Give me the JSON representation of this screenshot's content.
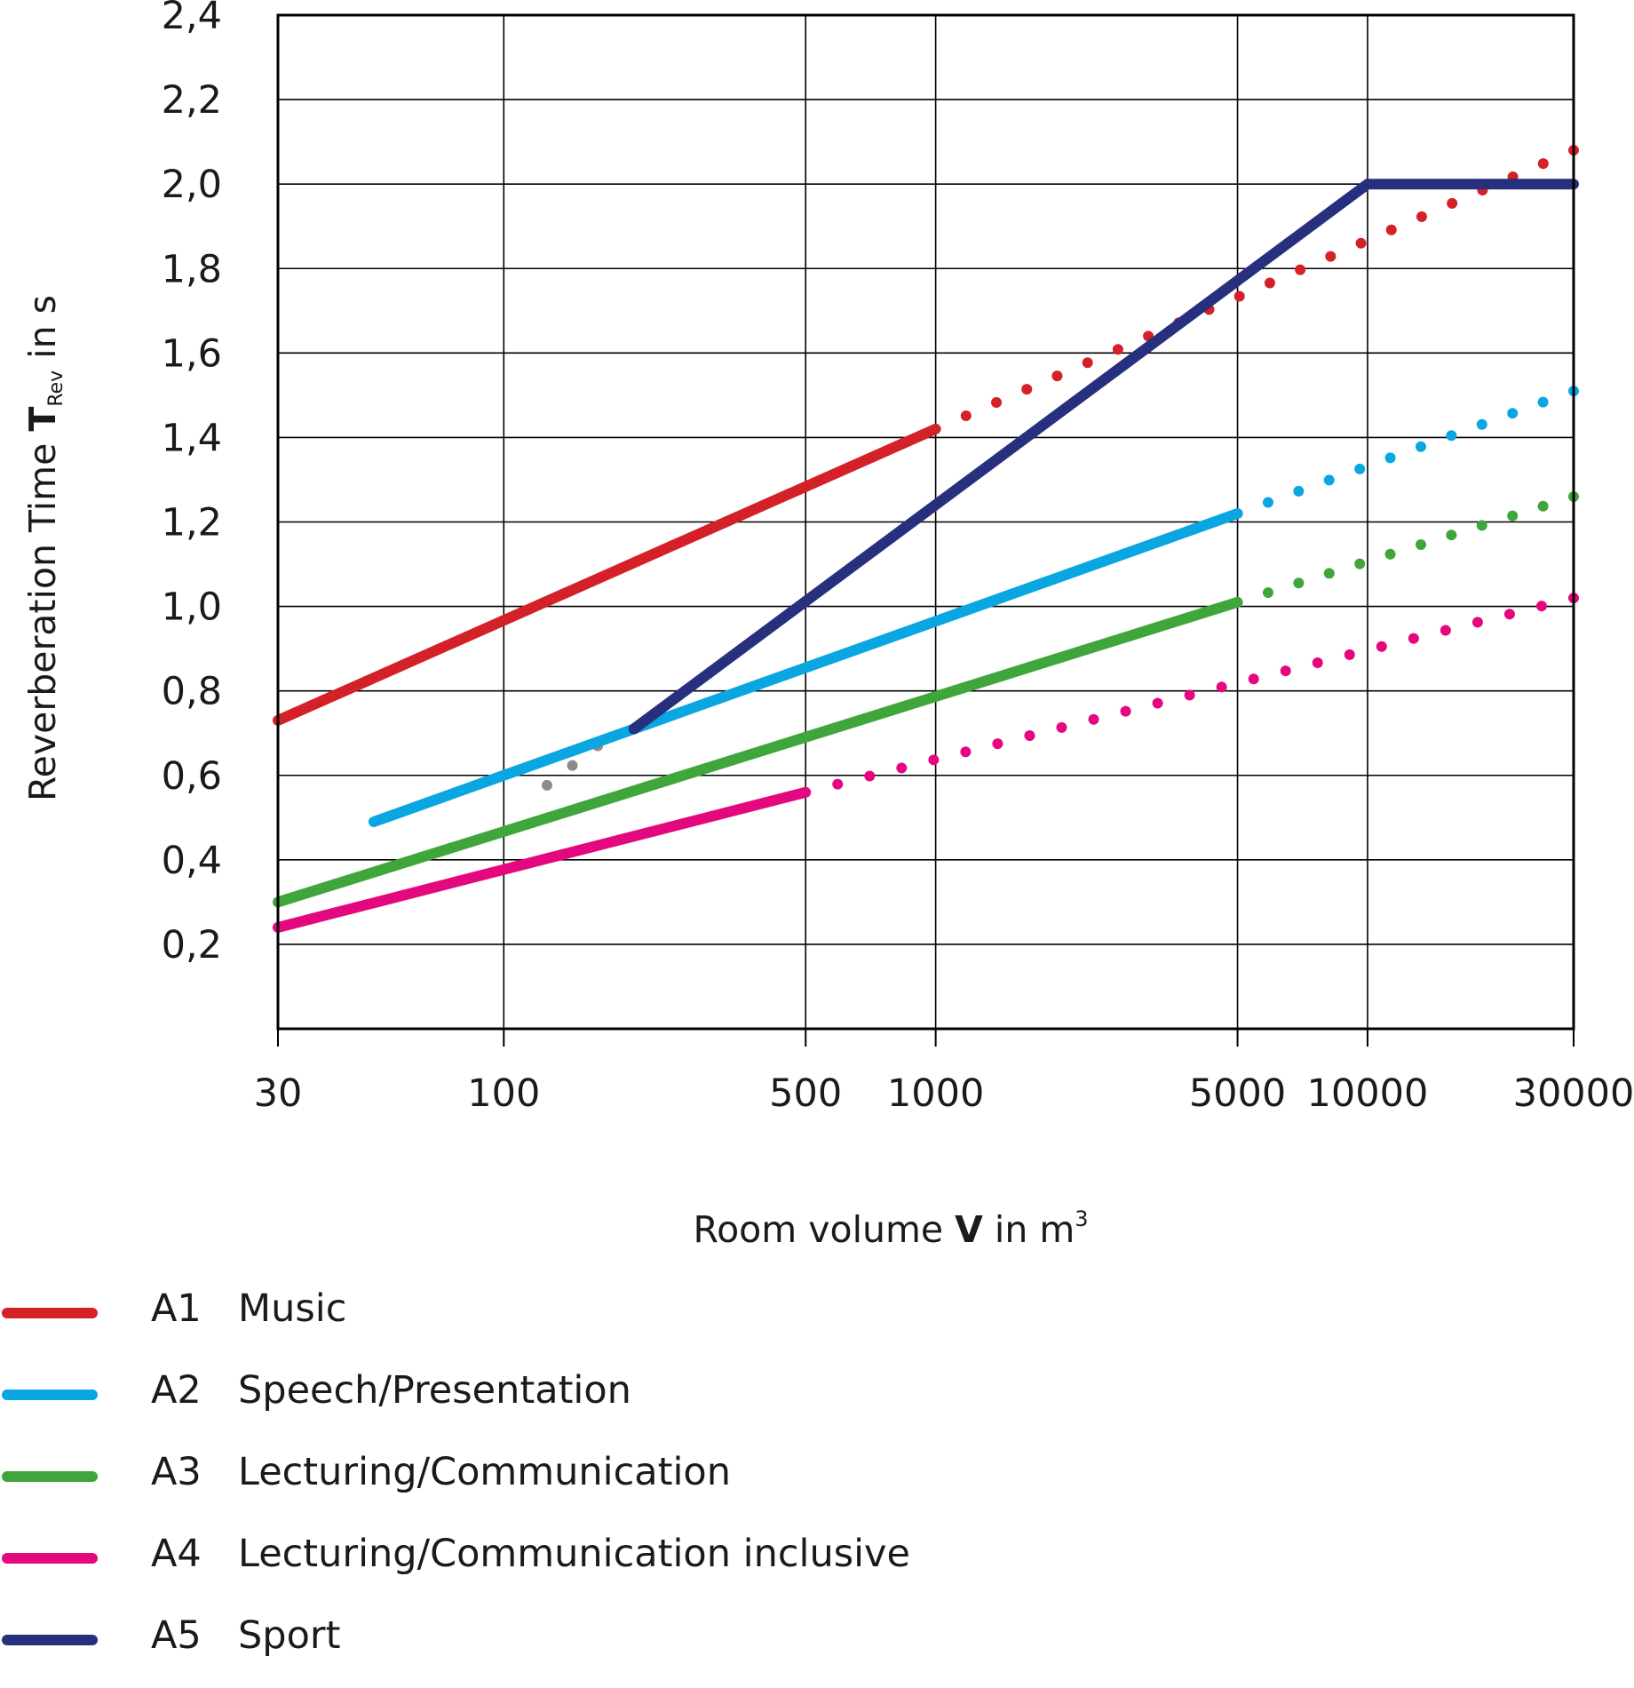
{
  "chart_data": {
    "type": "line",
    "title": "",
    "xlabel": {
      "prefix": "Room volume ",
      "symbol": "V",
      "suffix": " in m",
      "sup": "3"
    },
    "ylabel": {
      "prefix": "Reverberation Time ",
      "symbol": "T",
      "sub": "Rev",
      "suffix": " in s"
    },
    "xscale": "log",
    "xlim": [
      30,
      30000
    ],
    "ylim": [
      0,
      2.4
    ],
    "x_ticks": [
      30,
      100,
      500,
      1000,
      5000,
      10000,
      30000
    ],
    "x_tick_labels": [
      "30",
      "100",
      "500",
      "1000",
      "5000",
      "10000",
      "30000"
    ],
    "y_ticks": [
      0.2,
      0.4,
      0.6,
      0.8,
      1.0,
      1.2,
      1.4,
      1.6,
      1.8,
      2.0,
      2.2,
      2.4
    ],
    "y_tick_labels": [
      "0,2",
      "0,4",
      "0,6",
      "0,8",
      "1,0",
      "1,2",
      "1,4",
      "1,6",
      "1,8",
      "2,0",
      "2,2",
      "2,4"
    ],
    "grid": true,
    "legend_position": "bottom-left",
    "series": [
      {
        "id": "A1",
        "code": "A1",
        "name": "Music",
        "color": "#d42027",
        "solid": {
          "x": [
            30,
            1000
          ],
          "y": [
            0.73,
            1.42
          ]
        },
        "dotted": {
          "x": [
            1000,
            30000
          ],
          "y": [
            1.42,
            2.08
          ]
        }
      },
      {
        "id": "A2",
        "code": "A2",
        "name": "Speech/Presentation",
        "color": "#0aa6e2",
        "solid": {
          "x": [
            50,
            5000
          ],
          "y": [
            0.49,
            1.22
          ]
        },
        "dotted": {
          "x": [
            5000,
            30000
          ],
          "y": [
            1.22,
            1.51
          ]
        }
      },
      {
        "id": "A3",
        "code": "A3",
        "name": "Lecturing/Communication",
        "color": "#3fa63b",
        "solid": {
          "x": [
            30,
            5000
          ],
          "y": [
            0.3,
            1.01
          ]
        },
        "dotted": {
          "x": [
            5000,
            30000
          ],
          "y": [
            1.01,
            1.26
          ]
        }
      },
      {
        "id": "A4",
        "code": "A4",
        "name": "Lecturing/Communication inclusive",
        "color": "#e4087e",
        "solid": {
          "x": [
            30,
            500
          ],
          "y": [
            0.24,
            0.56
          ]
        },
        "dotted": {
          "x": [
            500,
            30000
          ],
          "y": [
            0.56,
            1.02
          ]
        }
      },
      {
        "id": "A5",
        "code": "A5",
        "name": "Sport",
        "color": "#27307e",
        "solid": {
          "x": [
            200,
            10000,
            30000
          ],
          "y": [
            0.71,
            2.0,
            2.0
          ]
        },
        "dotted": {
          "x": [
            110,
            165
          ],
          "y": [
            0.53,
            0.67
          ],
          "color": "#8c8c8c"
        }
      }
    ]
  }
}
